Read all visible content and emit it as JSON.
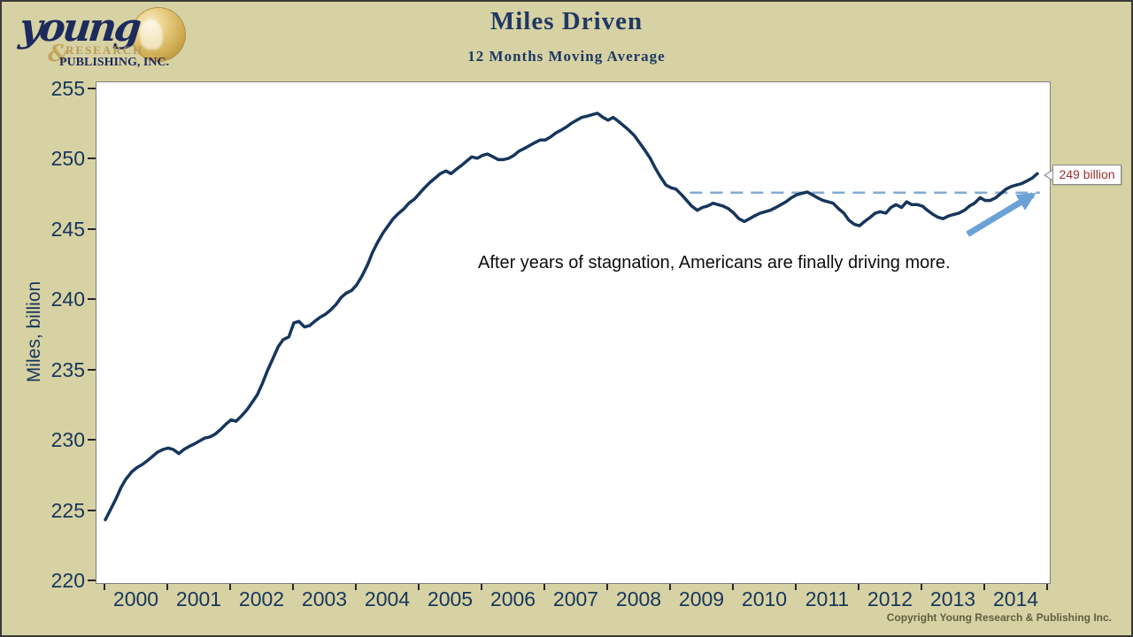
{
  "page": {
    "background": "#d7d2a3",
    "border_color": "#3a3a3a"
  },
  "logo": {
    "word": "young",
    "amp": "&",
    "research": "RESEARCH",
    "publishing": "PUBLISHING, INC."
  },
  "header": {
    "title": "Miles Driven",
    "subtitle": "12 Months Moving Average"
  },
  "footer": {
    "copyright": "Copyright Young Research & Publishing Inc."
  },
  "chart_data": {
    "type": "line",
    "title": "Miles Driven",
    "subtitle": "12 Months Moving Average",
    "xlabel": "",
    "ylabel": "Miles, billion",
    "xlim": [
      1999.859,
      2015.028
    ],
    "ylim": [
      219.9,
      255.5
    ],
    "grid": false,
    "y_ticks": [
      220,
      225,
      230,
      235,
      240,
      245,
      250,
      255
    ],
    "x_ticks": [
      2000,
      2001,
      2002,
      2003,
      2004,
      2005,
      2006,
      2007,
      2008,
      2009,
      2010,
      2011,
      2012,
      2013,
      2014,
      2015
    ],
    "x_tick_labels": [
      "2000",
      "2001",
      "2002",
      "2003",
      "2004",
      "2005",
      "2006",
      "2007",
      "2008",
      "2009",
      "2010",
      "2011",
      "2012",
      "2013",
      "2014"
    ],
    "series": [
      {
        "name": "Miles driven, 12-month moving average",
        "color": "#16365c",
        "width": 3.5,
        "points": [
          [
            2000.0,
            224.4
          ],
          [
            2000.08,
            225.1
          ],
          [
            2000.17,
            225.9
          ],
          [
            2000.25,
            226.7
          ],
          [
            2000.33,
            227.3
          ],
          [
            2000.42,
            227.8
          ],
          [
            2000.5,
            228.1
          ],
          [
            2000.58,
            228.3
          ],
          [
            2000.67,
            228.6
          ],
          [
            2000.75,
            228.9
          ],
          [
            2000.83,
            229.2
          ],
          [
            2000.92,
            229.4
          ],
          [
            2001.0,
            229.5
          ],
          [
            2001.08,
            229.4
          ],
          [
            2001.17,
            229.1
          ],
          [
            2001.25,
            229.4
          ],
          [
            2001.33,
            229.6
          ],
          [
            2001.42,
            229.8
          ],
          [
            2001.5,
            230.0
          ],
          [
            2001.58,
            230.2
          ],
          [
            2001.67,
            230.3
          ],
          [
            2001.75,
            230.5
          ],
          [
            2001.83,
            230.8
          ],
          [
            2001.92,
            231.2
          ],
          [
            2002.0,
            231.5
          ],
          [
            2002.08,
            231.4
          ],
          [
            2002.17,
            231.8
          ],
          [
            2002.25,
            232.2
          ],
          [
            2002.33,
            232.7
          ],
          [
            2002.42,
            233.3
          ],
          [
            2002.5,
            234.1
          ],
          [
            2002.58,
            235.0
          ],
          [
            2002.67,
            235.9
          ],
          [
            2002.75,
            236.7
          ],
          [
            2002.83,
            237.2
          ],
          [
            2002.92,
            237.4
          ],
          [
            2003.0,
            238.4
          ],
          [
            2003.08,
            238.5
          ],
          [
            2003.17,
            238.1
          ],
          [
            2003.25,
            238.2
          ],
          [
            2003.33,
            238.5
          ],
          [
            2003.42,
            238.8
          ],
          [
            2003.5,
            239.0
          ],
          [
            2003.58,
            239.3
          ],
          [
            2003.67,
            239.7
          ],
          [
            2003.75,
            240.2
          ],
          [
            2003.83,
            240.5
          ],
          [
            2003.92,
            240.7
          ],
          [
            2004.0,
            241.1
          ],
          [
            2004.08,
            241.7
          ],
          [
            2004.17,
            242.5
          ],
          [
            2004.25,
            243.4
          ],
          [
            2004.33,
            244.1
          ],
          [
            2004.42,
            244.8
          ],
          [
            2004.5,
            245.3
          ],
          [
            2004.58,
            245.8
          ],
          [
            2004.67,
            246.2
          ],
          [
            2004.75,
            246.5
          ],
          [
            2004.83,
            246.9
          ],
          [
            2004.92,
            247.2
          ],
          [
            2005.0,
            247.6
          ],
          [
            2005.08,
            248.0
          ],
          [
            2005.17,
            248.4
          ],
          [
            2005.25,
            248.7
          ],
          [
            2005.33,
            249.0
          ],
          [
            2005.42,
            249.2
          ],
          [
            2005.5,
            249.0
          ],
          [
            2005.58,
            249.3
          ],
          [
            2005.67,
            249.6
          ],
          [
            2005.75,
            249.9
          ],
          [
            2005.83,
            250.2
          ],
          [
            2005.92,
            250.1
          ],
          [
            2006.0,
            250.3
          ],
          [
            2006.08,
            250.4
          ],
          [
            2006.17,
            250.2
          ],
          [
            2006.25,
            250.0
          ],
          [
            2006.33,
            250.0
          ],
          [
            2006.42,
            250.1
          ],
          [
            2006.5,
            250.3
          ],
          [
            2006.58,
            250.6
          ],
          [
            2006.67,
            250.8
          ],
          [
            2006.75,
            251.0
          ],
          [
            2006.83,
            251.2
          ],
          [
            2006.92,
            251.4
          ],
          [
            2007.0,
            251.4
          ],
          [
            2007.08,
            251.6
          ],
          [
            2007.17,
            251.9
          ],
          [
            2007.25,
            252.1
          ],
          [
            2007.33,
            252.3
          ],
          [
            2007.42,
            252.6
          ],
          [
            2007.5,
            252.8
          ],
          [
            2007.58,
            253.0
          ],
          [
            2007.67,
            253.1
          ],
          [
            2007.75,
            253.2
          ],
          [
            2007.83,
            253.3
          ],
          [
            2007.92,
            253.0
          ],
          [
            2008.0,
            252.8
          ],
          [
            2008.08,
            253.0
          ],
          [
            2008.17,
            252.7
          ],
          [
            2008.25,
            252.4
          ],
          [
            2008.33,
            252.1
          ],
          [
            2008.42,
            251.7
          ],
          [
            2008.5,
            251.2
          ],
          [
            2008.58,
            250.7
          ],
          [
            2008.67,
            250.1
          ],
          [
            2008.75,
            249.4
          ],
          [
            2008.83,
            248.8
          ],
          [
            2008.92,
            248.2
          ],
          [
            2009.0,
            248.0
          ],
          [
            2009.08,
            247.9
          ],
          [
            2009.17,
            247.5
          ],
          [
            2009.25,
            247.1
          ],
          [
            2009.33,
            246.7
          ],
          [
            2009.42,
            246.4
          ],
          [
            2009.5,
            246.6
          ],
          [
            2009.58,
            246.7
          ],
          [
            2009.67,
            246.9
          ],
          [
            2009.75,
            246.8
          ],
          [
            2009.83,
            246.7
          ],
          [
            2009.92,
            246.5
          ],
          [
            2010.0,
            246.2
          ],
          [
            2010.08,
            245.8
          ],
          [
            2010.17,
            245.6
          ],
          [
            2010.25,
            245.8
          ],
          [
            2010.33,
            246.0
          ],
          [
            2010.42,
            246.2
          ],
          [
            2010.5,
            246.3
          ],
          [
            2010.58,
            246.4
          ],
          [
            2010.67,
            246.6
          ],
          [
            2010.75,
            246.8
          ],
          [
            2010.83,
            247.0
          ],
          [
            2010.92,
            247.3
          ],
          [
            2011.0,
            247.5
          ],
          [
            2011.08,
            247.6
          ],
          [
            2011.17,
            247.7
          ],
          [
            2011.25,
            247.5
          ],
          [
            2011.33,
            247.3
          ],
          [
            2011.42,
            247.1
          ],
          [
            2011.5,
            247.0
          ],
          [
            2011.58,
            246.9
          ],
          [
            2011.67,
            246.5
          ],
          [
            2011.75,
            246.2
          ],
          [
            2011.83,
            245.7
          ],
          [
            2011.92,
            245.4
          ],
          [
            2012.0,
            245.3
          ],
          [
            2012.08,
            245.6
          ],
          [
            2012.17,
            245.9
          ],
          [
            2012.25,
            246.2
          ],
          [
            2012.33,
            246.3
          ],
          [
            2012.42,
            246.2
          ],
          [
            2012.5,
            246.6
          ],
          [
            2012.58,
            246.8
          ],
          [
            2012.67,
            246.6
          ],
          [
            2012.75,
            247.0
          ],
          [
            2012.83,
            246.8
          ],
          [
            2012.92,
            246.8
          ],
          [
            2013.0,
            246.7
          ],
          [
            2013.08,
            246.4
          ],
          [
            2013.17,
            246.1
          ],
          [
            2013.25,
            245.9
          ],
          [
            2013.33,
            245.8
          ],
          [
            2013.42,
            246.0
          ],
          [
            2013.5,
            246.1
          ],
          [
            2013.58,
            246.2
          ],
          [
            2013.67,
            246.4
          ],
          [
            2013.75,
            246.7
          ],
          [
            2013.83,
            246.9
          ],
          [
            2013.92,
            247.3
          ],
          [
            2014.0,
            247.1
          ],
          [
            2014.08,
            247.1
          ],
          [
            2014.17,
            247.3
          ],
          [
            2014.25,
            247.6
          ],
          [
            2014.33,
            247.9
          ],
          [
            2014.42,
            248.1
          ],
          [
            2014.5,
            248.2
          ],
          [
            2014.58,
            248.3
          ],
          [
            2014.67,
            248.5
          ],
          [
            2014.75,
            248.7
          ],
          [
            2014.83,
            249.0
          ]
        ]
      }
    ],
    "reference_line": {
      "value": 247.65,
      "x_start": 2009.3,
      "x_end": 2014.87,
      "color": "#82aad2",
      "style": "dashed"
    },
    "trend_arrow": {
      "from": [
        2013.72,
        244.7
      ],
      "to": [
        2014.76,
        247.5
      ],
      "color": "#6ba2d6"
    },
    "annotation": {
      "text": "After years of stagnation, Americans are  finally driving more.",
      "color": "#0d0d0d"
    },
    "callout": {
      "text": "249 billion",
      "text_color": "#9c2f2f"
    }
  }
}
